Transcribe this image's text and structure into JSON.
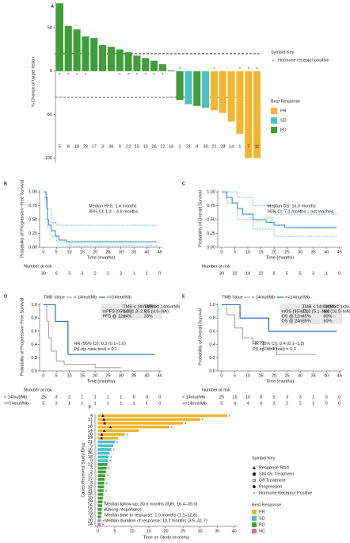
{
  "chart_data": [
    {
      "type": "waterfall",
      "panel_label": "A",
      "ylabel": "% Change of target lesion",
      "categories": [
        "5",
        "8",
        "18",
        "23",
        "17",
        "3",
        "36",
        "9",
        "22",
        "15",
        "10",
        "26",
        "12",
        "16",
        "2",
        "31",
        "9",
        "30",
        "21",
        "28",
        "14",
        "1",
        "7",
        "11"
      ],
      "series": [
        {
          "name": "PR",
          "color": "#f2b632",
          "values": [
            null,
            null,
            null,
            null,
            null,
            null,
            null,
            null,
            null,
            null,
            null,
            null,
            null,
            null,
            null,
            null,
            null,
            null,
            -45,
            -48,
            -58,
            -72,
            -100,
            -100
          ]
        },
        {
          "name": "SD",
          "color": "#4cc2c4",
          "values": [
            null,
            null,
            null,
            null,
            null,
            null,
            null,
            null,
            null,
            null,
            null,
            null,
            null,
            null,
            null,
            -38,
            null,
            -42,
            null,
            null,
            null,
            null,
            null,
            null
          ]
        },
        {
          "name": "PD",
          "color": "#3f9e3a",
          "values": [
            78,
            52,
            48,
            40,
            38,
            30,
            28,
            25,
            22,
            18,
            15,
            12,
            8,
            1,
            -33,
            null,
            -40,
            null,
            null,
            null,
            null,
            null,
            null,
            null
          ]
        }
      ],
      "hormone_receptor_positive": [
        true,
        true,
        true,
        true,
        false,
        false,
        false,
        true,
        true,
        true,
        true,
        true,
        true,
        false,
        true,
        false,
        false,
        false,
        true,
        false,
        false,
        true,
        true,
        true
      ],
      "reference_lines": [
        20,
        -30
      ],
      "ylim": [
        -105,
        80
      ],
      "yticks": [
        -100,
        -50,
        0,
        50
      ],
      "symbol_key_title": "Symbol Key",
      "symbol_key_label": "Hormone receptor positive",
      "legend_title": "Best Response"
    },
    {
      "type": "survival",
      "panel_label": "B",
      "ylabel": "Probability of Progression−Free Survival",
      "xlabel": "Time (months)",
      "series": [
        {
          "color": "#3b8fd4",
          "x": [
            0,
            1,
            1,
            1.3,
            1.3,
            1.5,
            1.5,
            2,
            2,
            3,
            3,
            4.6,
            4.6,
            6,
            6,
            9,
            9,
            44
          ],
          "values": [
            1,
            1,
            0.9,
            0.9,
            0.7,
            0.7,
            0.5,
            0.5,
            0.4,
            0.4,
            0.3,
            0.3,
            0.2,
            0.2,
            0.13,
            0.13,
            0.1,
            0.1
          ]
        },
        {
          "color": "#3b8fd4",
          "dashed": true,
          "x": [
            0,
            1,
            1,
            1.5,
            1.5,
            3,
            3,
            5,
            5,
            44
          ],
          "values": [
            1,
            1,
            0.97,
            0.97,
            0.7,
            0.7,
            0.45,
            0.45,
            0.4,
            0.4
          ]
        },
        {
          "color": "#3b8fd4",
          "dashed": true,
          "x": [
            0,
            1,
            1,
            1.5,
            1.5,
            3,
            3,
            5,
            5,
            10,
            10,
            44
          ],
          "values": [
            1,
            1,
            0.8,
            0.8,
            0.35,
            0.35,
            0.2,
            0.2,
            0.1,
            0.1,
            0.03,
            0.03
          ]
        }
      ],
      "annotations": [
        "Median PFS: 1.4 months",
        "95% CI: 1.3 – 4.6 months"
      ],
      "xlim": [
        -1.5,
        46
      ],
      "xticks": [
        0,
        5,
        10,
        15,
        20,
        25,
        30,
        35,
        40,
        45
      ],
      "ylim": [
        0,
        1.03
      ],
      "yticks": [
        {
          "value": 0,
          "label": "0.00"
        },
        {
          "value": 0.25,
          "label": "0.25"
        },
        {
          "value": 0.5,
          "label": "0.50"
        },
        {
          "value": 0.75,
          "label": "0.75"
        },
        {
          "value": 1,
          "label": "1.00"
        }
      ],
      "risk_table": {
        "title": "Number at risk",
        "rows": [
          {
            "values": [
              30,
              6,
              3,
              3,
              2,
              2,
              2,
              1,
              1,
              0
            ]
          }
        ]
      }
    },
    {
      "type": "survival",
      "panel_label": "C",
      "ylabel": "Probability of Overall Survival",
      "xlabel": "Time (months)",
      "series": [
        {
          "color": "#3b8fd4",
          "x": [
            0,
            2,
            2,
            4,
            4,
            6,
            6,
            8,
            8,
            12,
            12,
            17,
            17,
            20,
            20,
            24,
            24,
            44
          ],
          "values": [
            1,
            1,
            0.9,
            0.9,
            0.8,
            0.8,
            0.7,
            0.7,
            0.6,
            0.6,
            0.5,
            0.5,
            0.45,
            0.45,
            0.4,
            0.4,
            0.36,
            0.36
          ]
        },
        {
          "color": "#3b8fd4",
          "dashed": true,
          "x": [
            0,
            2,
            2,
            6,
            6,
            12,
            12,
            20,
            20,
            44
          ],
          "values": [
            1,
            1,
            1,
            1,
            0.9,
            0.9,
            0.75,
            0.75,
            0.6,
            0.6
          ]
        },
        {
          "color": "#3b8fd4",
          "dashed": true,
          "x": [
            0,
            2,
            2,
            6,
            6,
            12,
            12,
            20,
            20,
            44
          ],
          "values": [
            1,
            1,
            0.8,
            0.8,
            0.5,
            0.5,
            0.33,
            0.33,
            0.2,
            0.2
          ]
        }
      ],
      "annotations": [
        "Median OS: 16.9 months",
        "95% CI: 7.1 months – not reached"
      ],
      "xlim": [
        -1.5,
        46
      ],
      "xticks": [
        0,
        5,
        10,
        15,
        20,
        25,
        30,
        35,
        40,
        45
      ],
      "ylim": [
        0,
        1.03
      ],
      "yticks": [
        {
          "value": 0,
          "label": "0.00"
        },
        {
          "value": 0.25,
          "label": "0.25"
        },
        {
          "value": 0.5,
          "label": "0.50"
        },
        {
          "value": 0.75,
          "label": "0.75"
        },
        {
          "value": 1,
          "label": "1.00"
        }
      ],
      "risk_table": {
        "title": "Number at risk",
        "rows": [
          {
            "values": [
              30,
              20,
              14,
              12,
              8,
              5,
              5,
              3,
              1,
              0
            ]
          }
        ]
      }
    },
    {
      "type": "survival",
      "panel_label": "D",
      "ylabel": "Probability of Progression−Free Survival",
      "xlabel": "Time (months)",
      "legend_title": "TMB Value",
      "series": [
        {
          "name": "< 14mut/Mb",
          "color": "#a6a6a6",
          "x": [
            0,
            1.3,
            1.3,
            2,
            2,
            3,
            3,
            5,
            5,
            8,
            8,
            20,
            20,
            30
          ],
          "values": [
            1,
            1,
            0.75,
            0.75,
            0.5,
            0.5,
            0.3,
            0.3,
            0.15,
            0.15,
            0.1,
            0.1,
            0.05,
            0.05
          ]
        },
        {
          "name": ">=14mut/Mb",
          "color": "#1f5fae",
          "x": [
            0,
            4.6,
            4.6,
            9.5,
            9.5,
            43
          ],
          "values": [
            1,
            1,
            0.75,
            0.75,
            0.25,
            0.25
          ]
        }
      ],
      "table": {
        "columns": [
          "TMB < 14mut/Mb",
          "TMB >= 14mut/Mb"
        ],
        "rows": [
          [
            "mPFS (95%CI)",
            "1.4 (1.3–2.5)",
            "9.5 (4.6–NA)"
          ],
          [
            "PFS @ 12m",
            "14%",
            "33%"
          ]
        ]
      },
      "annotations": [
        "HR (95% CI): 0.3 (0.1–1.0)",
        "P(Log−rank test) = 0.1"
      ],
      "xlim": [
        -1.5,
        46
      ],
      "xticks": [
        0,
        5,
        10,
        15,
        20,
        25,
        30,
        35,
        40,
        45
      ],
      "ylim": [
        0,
        1.03
      ],
      "yticks": [
        {
          "value": 0,
          "label": "0.0"
        },
        0.2,
        0.4,
        0.6,
        0.8,
        {
          "value": 1,
          "label": "1.0"
        }
      ],
      "risk_table": {
        "title": "Number at risk",
        "rows": [
          {
            "name": "< 14mut/Mb",
            "values": [
              25,
              3,
              2,
              1,
              1,
              1,
              1,
              0,
              0,
              0
            ]
          },
          {
            "name": ">=14mut/Mb",
            "values": [
              5,
              3,
              1,
              1,
              1,
              1,
              1,
              1,
              1,
              0
            ]
          }
        ]
      }
    },
    {
      "type": "survival",
      "panel_label": "E",
      "ylabel": "Probability of Overall Survival",
      "xlabel": "Time (months)",
      "legend_title": "TMB Value",
      "series": [
        {
          "name": "< 14mut/Mb",
          "color": "#a6a6a6",
          "x": [
            0,
            2,
            2,
            5,
            5,
            8,
            8,
            12,
            12,
            16,
            16,
            21,
            21,
            36
          ],
          "values": [
            1,
            1,
            0.85,
            0.85,
            0.65,
            0.65,
            0.5,
            0.5,
            0.45,
            0.45,
            0.35,
            0.35,
            0.25,
            0.25
          ]
        },
        {
          "name": ">=14mut/Mb",
          "color": "#1f5fae",
          "x": [
            0,
            7,
            7,
            18,
            18,
            44
          ],
          "values": [
            1,
            1,
            0.8,
            0.8,
            0.6,
            0.6
          ]
        }
      ],
      "table": {
        "columns": [
          "TMB < 14mut/Mb",
          "TMB >= 14mut/Mb"
        ],
        "rows": [
          [
            "mOS (95%CI)",
            "13.3 (5.1–NA)",
            "NA (16.9–NA)"
          ],
          [
            "OS @ 12m",
            "45%",
            "80%"
          ],
          [
            "OS @ 24m",
            "35%",
            "60%"
          ]
        ]
      },
      "annotations": [
        "HR (95% CI): 0.4 (0.1–1.5)",
        "P(Log−rank test) = 0.3"
      ],
      "xlim": [
        -1.5,
        46
      ],
      "xticks": [
        0,
        5,
        10,
        15,
        20,
        25,
        30,
        35,
        40,
        45
      ],
      "ylim": [
        0,
        1.03
      ],
      "yticks": [
        {
          "value": 0,
          "label": "0.0"
        },
        0.2,
        0.4,
        0.6,
        0.8,
        {
          "value": 1,
          "label": "1.0"
        }
      ],
      "risk_table": {
        "title": "Number at risk",
        "rows": [
          {
            "name": "< 14mut/Mb",
            "values": [
              25,
              16,
              10,
              8,
              5,
              3,
              3,
              1,
              0,
              0
            ]
          },
          {
            "name": ">=14mut/Mb",
            "values": [
              5,
              4,
              4,
              4,
              3,
              2,
              2,
              1,
              0,
              0
            ]
          }
        ]
      }
    },
    {
      "type": "swimmer",
      "panel_label": "F",
      "ylabel": "Cases Received Study Drug",
      "xlabel": "Time on Study (months)",
      "categories": [
        "4",
        "11",
        "1",
        "30",
        "14",
        "26",
        "23",
        "21",
        "5",
        "16",
        "36",
        "18",
        "9",
        "22",
        "3",
        "2",
        "17",
        "27",
        "8",
        "12",
        "31",
        "28",
        "10",
        "29",
        "25",
        "15",
        "19",
        "6",
        "20",
        "24"
      ],
      "series": [
        {
          "name": "PR",
          "color": "#f2b632",
          "values": [
            38,
            30,
            25,
            21,
            12,
            8,
            6,
            null,
            null,
            null,
            null,
            null,
            null,
            null,
            null,
            null,
            null,
            null,
            null,
            null,
            null,
            null,
            null,
            null,
            null,
            null,
            null,
            null,
            null,
            null
          ]
        },
        {
          "name": "SD",
          "color": "#4cc2c4",
          "values": [
            null,
            null,
            null,
            null,
            null,
            null,
            null,
            5,
            4.5,
            4,
            3.5,
            3.2,
            3,
            null,
            null,
            null,
            null,
            null,
            null,
            null,
            null,
            null,
            null,
            null,
            null,
            null,
            null,
            null,
            null,
            null
          ]
        },
        {
          "name": "PD",
          "color": "#3f9e3a",
          "values": [
            null,
            null,
            null,
            null,
            null,
            null,
            null,
            null,
            null,
            null,
            null,
            null,
            null,
            2.8,
            2.6,
            2.4,
            2.2,
            2,
            1.9,
            1.8,
            1.7,
            1.6,
            1.5,
            1.4,
            1.3,
            1.2,
            1.1,
            1,
            null,
            null
          ]
        },
        {
          "name": "NC",
          "color": "#d46fb5",
          "values": [
            null,
            null,
            null,
            null,
            null,
            null,
            null,
            null,
            null,
            null,
            null,
            null,
            null,
            null,
            null,
            null,
            null,
            null,
            null,
            null,
            null,
            null,
            null,
            null,
            null,
            null,
            null,
            null,
            0.9,
            0.8
          ]
        }
      ],
      "response_start": [
        1.5,
        1.8,
        2,
        3.7,
        1.9,
        1.2,
        1.1,
        null,
        null,
        null,
        null,
        null,
        null,
        null,
        null,
        null,
        null,
        null,
        null,
        null,
        null,
        null,
        null,
        null,
        null,
        null,
        null,
        null,
        null,
        null
      ],
      "hormone_receptor_positive": [
        true,
        true,
        true,
        true,
        false,
        true,
        false,
        true,
        false,
        true,
        false,
        true,
        true,
        false,
        true,
        false,
        true,
        false,
        true,
        false,
        true,
        false,
        false,
        true,
        false,
        true,
        false,
        false,
        true,
        true
      ],
      "symbol_key_title": "Symbol Key",
      "symbol_key": [
        "Response Start",
        "Still On Treatment",
        "Off Treatment",
        "Progression",
        "Hormone Receptor Positive"
      ],
      "legend_title": "Best Response",
      "annotations": [
        "Median follow-up: 30.6 months (IQR: 16.4–35.0)",
        "Among responders:",
        "Median time to response: 1.9 months (1.1–12.6)",
        "Median duration of response: 10.2 months (3.5–41.7)"
      ],
      "xlim": [
        -0.8,
        41
      ],
      "xticks": [
        0,
        5,
        10,
        15,
        20,
        25,
        30,
        35,
        40
      ]
    }
  ]
}
